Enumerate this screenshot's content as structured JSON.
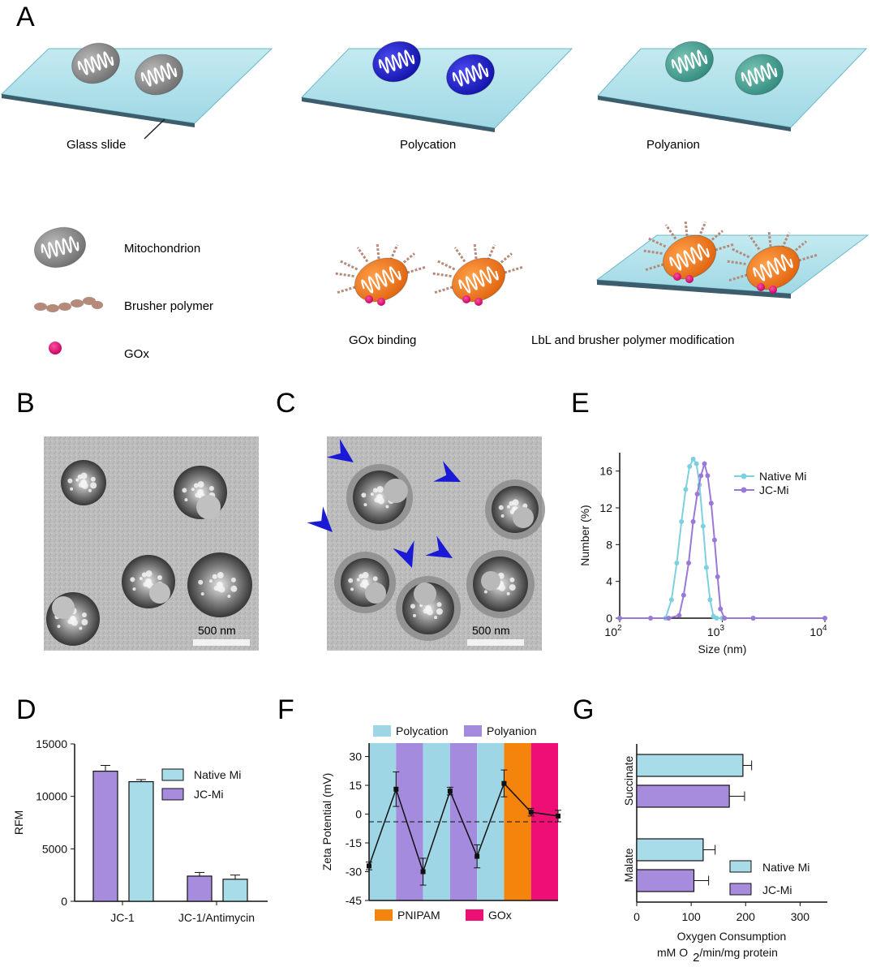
{
  "panels": {
    "A": "A",
    "B": "B",
    "C": "C",
    "D": "D",
    "E": "E",
    "F": "F",
    "G": "G"
  },
  "schematic": {
    "step_labels": [
      "Glass slide",
      "Polycation",
      "Polyanion"
    ],
    "legend": [
      "Mitochondrion",
      "Brusher polymer",
      "GOx"
    ],
    "bottom_labels": [
      "GOx binding",
      "LbL and brusher polymer modification"
    ],
    "colors": {
      "glass": "#a9dde8",
      "mito_native": "#8c8c8c",
      "polycation": "#1f1fd0",
      "polyanion": "#3b9e8e",
      "modified": "#f07a1a",
      "gox": "#e0107a",
      "brusher": "#b58a7a"
    }
  },
  "micrographs": {
    "B": {
      "scale_label": "500 nm"
    },
    "C": {
      "scale_label": "500 nm",
      "arrow_color": "#1a1ad6"
    }
  },
  "chart_data": [
    {
      "panel": "D",
      "type": "bar",
      "categories": [
        "JC-1",
        "JC-1/Antimycin"
      ],
      "series": [
        {
          "name": "JC-Mi",
          "values": [
            12400,
            2400
          ],
          "errors": [
            550,
            350
          ],
          "color": "#a78bdc"
        },
        {
          "name": "Native Mi",
          "values": [
            11400,
            2100
          ],
          "errors": [
            200,
            400
          ],
          "color": "#a8dce8"
        }
      ],
      "ylabel": "RFM",
      "ylim": [
        0,
        15000
      ],
      "yticks": [
        0,
        5000,
        10000,
        15000
      ],
      "legend_entries": [
        "Native Mi",
        "JC-Mi"
      ]
    },
    {
      "panel": "E",
      "type": "line",
      "xscale": "log",
      "xlim": [
        100,
        10000
      ],
      "xticks": [
        "10^2",
        "10^3",
        "10^4"
      ],
      "ylim": [
        0,
        18
      ],
      "yticks": [
        0,
        4,
        8,
        12,
        16
      ],
      "xlabel": "Size (nm)",
      "ylabel": "Number (%)",
      "series": [
        {
          "name": "Native Mi",
          "color": "#7dd0e0",
          "x": [
            100,
            200,
            280,
            320,
            360,
            400,
            440,
            480,
            520,
            560,
            600,
            650,
            700,
            760,
            820,
            880,
            1000,
            2000,
            10000
          ],
          "y": [
            0,
            0,
            0,
            2,
            6,
            10.5,
            14,
            16.5,
            17.3,
            16.8,
            14.5,
            10,
            5.5,
            2,
            0.2,
            0,
            0,
            0,
            0
          ]
        },
        {
          "name": "JC-Mi",
          "color": "#9a78d8",
          "x": [
            100,
            200,
            300,
            380,
            420,
            470,
            520,
            570,
            620,
            670,
            720,
            780,
            840,
            900,
            960,
            1050,
            2000,
            10000
          ],
          "y": [
            0,
            0,
            0,
            0.3,
            2.5,
            6,
            10.5,
            13.5,
            15.5,
            16.8,
            15.5,
            12.5,
            8.5,
            4.5,
            1,
            0,
            0,
            0
          ]
        }
      ]
    },
    {
      "panel": "F",
      "type": "line",
      "ylabel": "Zeta Potential (mV)",
      "ylim": [
        -45,
        37
      ],
      "yticks": [
        -45,
        -30,
        -15,
        0,
        15,
        30
      ],
      "baseline": -4,
      "bands": [
        "Polycation",
        "Polyanion",
        "Polycation",
        "Polyanion",
        "Polycation",
        "PNIPAM",
        "GOx"
      ],
      "band_colors": {
        "Polycation": "#9fd6e6",
        "Polyanion": "#a58bde",
        "PNIPAM": "#f5840c",
        "GOx": "#ee0f74"
      },
      "legend_top": [
        "Polycation",
        "Polyanion"
      ],
      "legend_bottom": [
        "PNIPAM",
        "GOx"
      ],
      "values": [
        -27,
        13,
        -30,
        12,
        -22,
        16,
        1,
        -1
      ],
      "errors": [
        2,
        9,
        7,
        2,
        6,
        7,
        2,
        3
      ]
    },
    {
      "panel": "G",
      "type": "bar",
      "orientation": "horizontal",
      "groups": [
        "Succinate",
        "Malate"
      ],
      "series": [
        {
          "name": "Native Mi",
          "values": [
            195,
            122
          ],
          "errors": [
            16,
            22
          ],
          "color": "#a8dce8"
        },
        {
          "name": "JC-Mi",
          "values": [
            170,
            105
          ],
          "errors": [
            28,
            27
          ],
          "color": "#a78bdc"
        }
      ],
      "xlim": [
        0,
        350
      ],
      "xticks": [
        0,
        100,
        200,
        300
      ],
      "xlabel_line1": "Oxygen Consumption",
      "xlabel_line2": "mM O",
      "xlabel_sub": "2",
      "xlabel_tail": "/min/mg protein",
      "legend_entries": [
        "Native Mi",
        "JC-Mi"
      ]
    }
  ]
}
